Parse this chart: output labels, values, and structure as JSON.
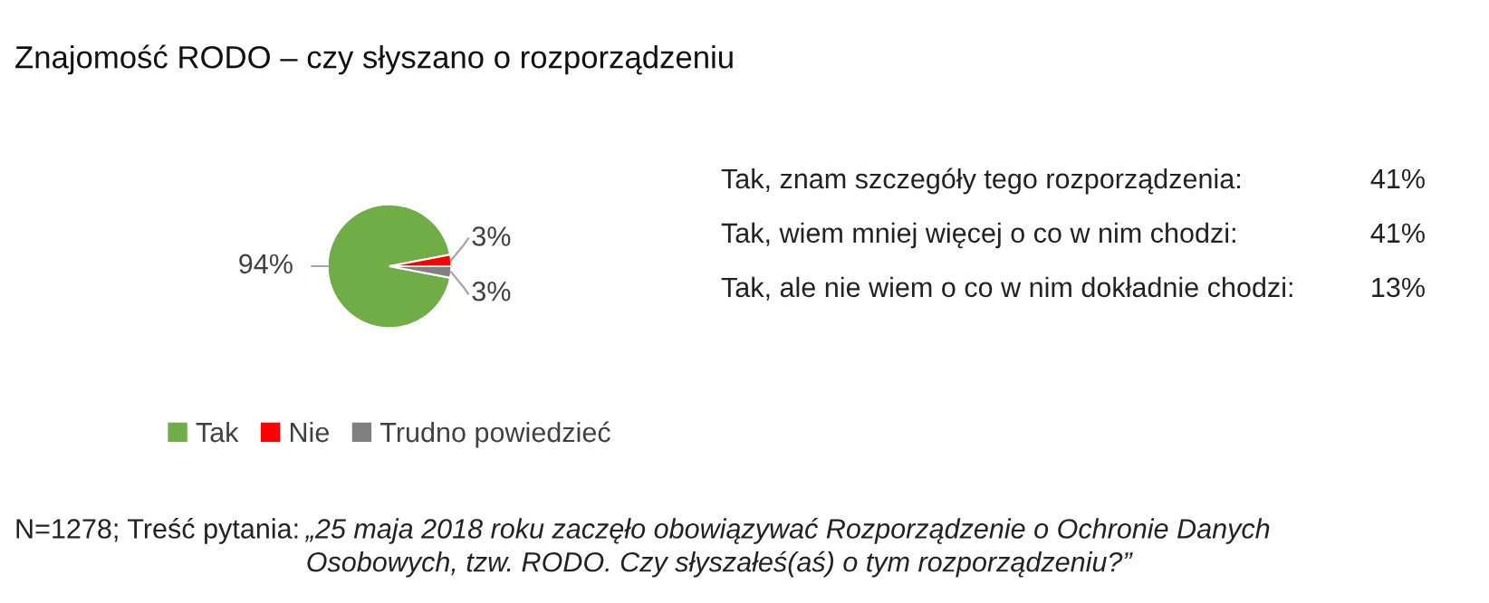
{
  "chart_data": {
    "type": "pie",
    "title": "Znajomość RODO – czy słyszano o rozporządzeniu",
    "categories": [
      "Tak",
      "Nie",
      "Trudno powiedzieć"
    ],
    "values": [
      94,
      3,
      3
    ],
    "colors": [
      "#70ad47",
      "#ff0000",
      "#808080"
    ],
    "value_labels": [
      "94%",
      "3%",
      "3%"
    ],
    "legend": "bottom",
    "annotations": [
      "Tak, znam szczegóły tego rozporządzenia:",
      "41%",
      "Tak, wiem mniej więcej o co w nim chodzi:",
      "41%",
      "Tak, ale nie wiem o co w nim dokładnie chodzi:",
      "13%",
      "N=1278; Treść pytania:",
      "„25 maja 2018 roku zaczęło obowiązywać Rozporządzenie o Ochronie Danych\nOsobowych, tzw. RODO. Czy słyszałeś(aś) o tym rozporządzeniu?”"
    ]
  }
}
